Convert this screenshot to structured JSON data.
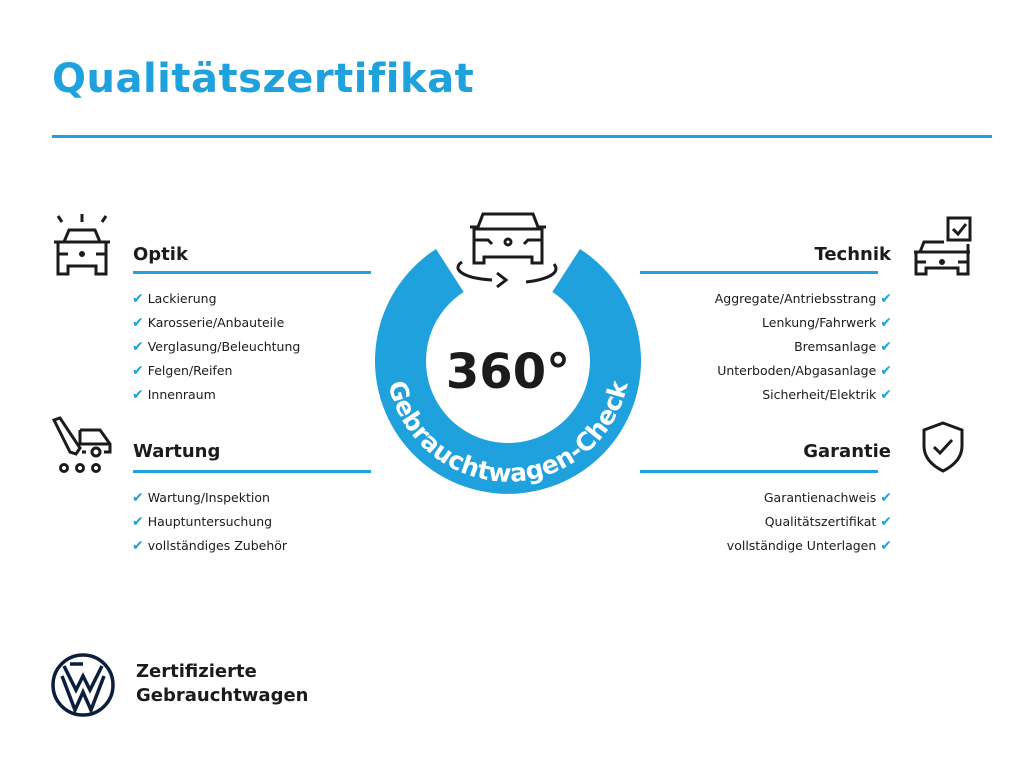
{
  "title": "Qualitätszertifikat",
  "colors": {
    "accent": "#1ea1dc",
    "text": "#1b1b1b"
  },
  "center": {
    "number": "360°",
    "ring_text": "Gebrauchtwagen-Check"
  },
  "sections": {
    "optik": {
      "title": "Optik",
      "icon": "car-lights-icon",
      "items": [
        "Lackierung",
        "Karosserie/Anbauteile",
        "Verglasung/Beleuchtung",
        "Felgen/Reifen",
        "Innenraum"
      ]
    },
    "wartung": {
      "title": "Wartung",
      "icon": "service-tools-icon",
      "items": [
        "Wartung/Inspektion",
        "Hauptuntersuchung",
        "vollständiges Zubehör"
      ]
    },
    "technik": {
      "title": "Technik",
      "icon": "car-checkbox-icon",
      "items": [
        "Aggregate/Antriebsstrang",
        "Lenkung/Fahrwerk",
        "Bremsanlage",
        "Unterboden/Abgasanlage",
        "Sicherheit/Elektrik"
      ]
    },
    "garantie": {
      "title": "Garantie",
      "icon": "shield-check-icon",
      "items": [
        "Garantienachweis",
        "Qualitätszertifikat",
        "vollständige Unterlagen"
      ]
    }
  },
  "check_mark": "✔",
  "brand": {
    "logo": "VW",
    "line1": "Zertifizierte",
    "line2": "Gebrauchtwagen"
  }
}
